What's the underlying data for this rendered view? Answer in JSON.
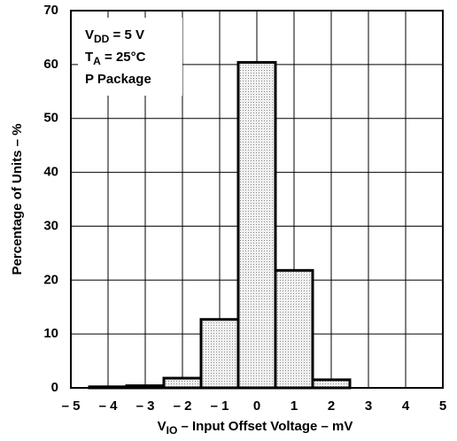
{
  "chart_data": {
    "type": "histogram",
    "bins": [
      -4.5,
      -3.5,
      -2.5,
      -1.5,
      -0.5,
      0.5,
      1.5,
      2.5,
      3.5,
      4.5
    ],
    "values": [
      0.2,
      0.4,
      1.8,
      12.7,
      60.4,
      21.8,
      1.5,
      0,
      0
    ],
    "xlim": [
      -5,
      5
    ],
    "xticks": [
      {
        "value": -5,
        "label": "– 5"
      },
      {
        "value": -4,
        "label": "– 4"
      },
      {
        "value": -3,
        "label": "– 3"
      },
      {
        "value": -2,
        "label": "– 2"
      },
      {
        "value": -1,
        "label": "– 1"
      },
      0,
      1,
      2,
      3,
      4,
      5
    ],
    "ylim": [
      0,
      70
    ],
    "yticks": [
      0,
      10,
      20,
      30,
      40,
      50,
      60,
      70
    ],
    "grid": true,
    "ylabel": "Percentage of Units – %",
    "xlabel": {
      "text": "V",
      "sub": "IO",
      "rest": " – Input Offset Voltage – mV"
    },
    "annotations": [
      {
        "text": "V",
        "sub": "DD",
        "rest": " = 5 V"
      },
      {
        "text": "T",
        "sub": "A",
        "rest": " = 25°C"
      },
      {
        "text": "P Package"
      }
    ]
  }
}
